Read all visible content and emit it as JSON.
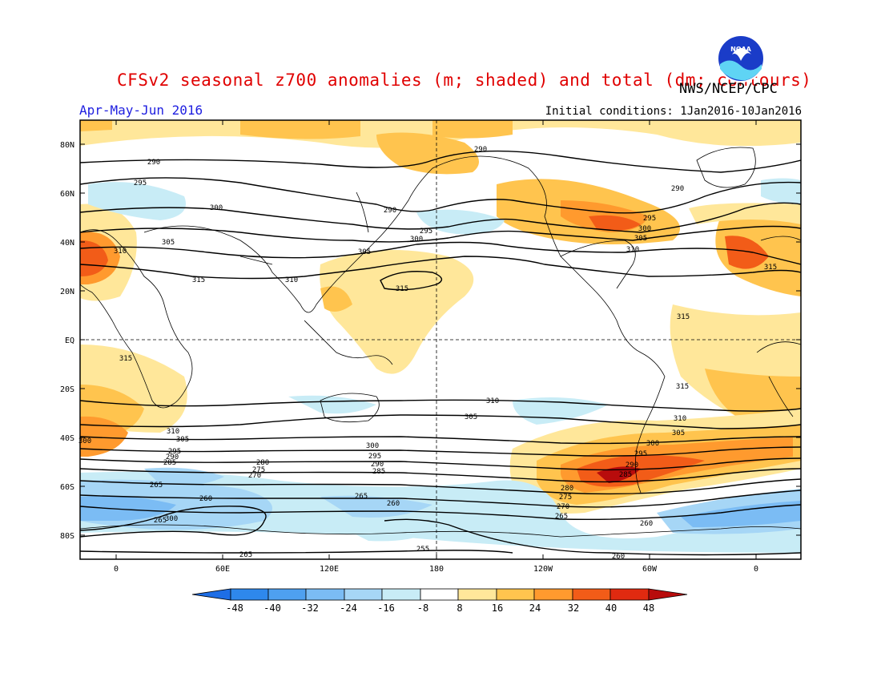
{
  "header": {
    "title": "CFSv2 seasonal z700 anomalies (m; shaded) and total (dm; contours)",
    "agency": "NWS/NCEP/CPC",
    "period": "Apr-May-Jun 2016",
    "initial_conditions": "Initial conditions: 1Jan2016-10Jan2016",
    "logo_text": "NOAA"
  },
  "map": {
    "lat_labels": [
      "80N",
      "60N",
      "40N",
      "20N",
      "EQ",
      "20S",
      "40S",
      "60S",
      "80S"
    ],
    "lon_labels": [
      "0",
      "60E",
      "120E",
      "180",
      "120W",
      "60W",
      "0"
    ],
    "contour_labels": [
      "290",
      "295",
      "300",
      "305",
      "310",
      "315",
      "310",
      "305",
      "300",
      "295",
      "290",
      "280",
      "275",
      "270",
      "265",
      "260",
      "255",
      "285"
    ]
  },
  "colorbar": {
    "labels": [
      "-48",
      "-40",
      "-32",
      "-24",
      "-16",
      "-8",
      "8",
      "16",
      "24",
      "32",
      "40",
      "48"
    ],
    "colors": {
      "lt_minus48": "#1e6ee6",
      "m48_m40": "#2e88ec",
      "m40_m32": "#4ea0f0",
      "m32_m24": "#7bbcf4",
      "m24_m16": "#a6d6f6",
      "m16_m8": "#c8ecf6",
      "m8_p8": "#ffffff",
      "p8_p16": "#ffe79a",
      "p16_p24": "#ffc44e",
      "p24_p32": "#ff9a2e",
      "p32_p40": "#f25c18",
      "p40_p48": "#e02a10",
      "gt_p48": "#b80c0c"
    }
  }
}
